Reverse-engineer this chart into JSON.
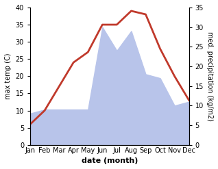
{
  "months": [
    "Jan",
    "Feb",
    "Mar",
    "Apr",
    "May",
    "Jun",
    "Jul",
    "Aug",
    "Sep",
    "Oct",
    "Nov",
    "Dec"
  ],
  "max_temp": [
    6,
    10,
    17,
    24,
    27,
    35,
    35,
    39,
    38,
    28,
    20,
    13
  ],
  "precipitation_right_values": [
    8,
    9,
    9,
    9,
    9,
    30,
    24,
    29,
    18,
    17,
    10,
    11
  ],
  "temp_color": "#c0392b",
  "precip_fill_color": "#b8c4ea",
  "temp_ylim": [
    0,
    40
  ],
  "precip_ylim": [
    0,
    35
  ],
  "xlabel": "date (month)",
  "ylabel_left": "max temp (C)",
  "ylabel_right": "med. precipitation (kg/m2)",
  "bg_color": "#ffffff",
  "temp_linewidth": 2.0
}
